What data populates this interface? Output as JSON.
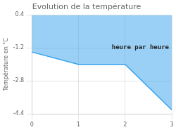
{
  "chart_data": {
    "type": "line",
    "title": "Evolution de la température",
    "ylabel": "Température en °C",
    "annotation": "heure par heure",
    "x": [
      0,
      1,
      2,
      3
    ],
    "values": [
      -1.4,
      -2.0,
      -2.0,
      -4.2
    ],
    "xlim": [
      0,
      3
    ],
    "xticks": [
      0,
      1,
      2,
      3
    ],
    "ylim": [
      -4.4,
      0.4
    ],
    "yticks": [
      -4.4,
      -2.8,
      -1.2,
      0.4
    ],
    "grid": true
  }
}
